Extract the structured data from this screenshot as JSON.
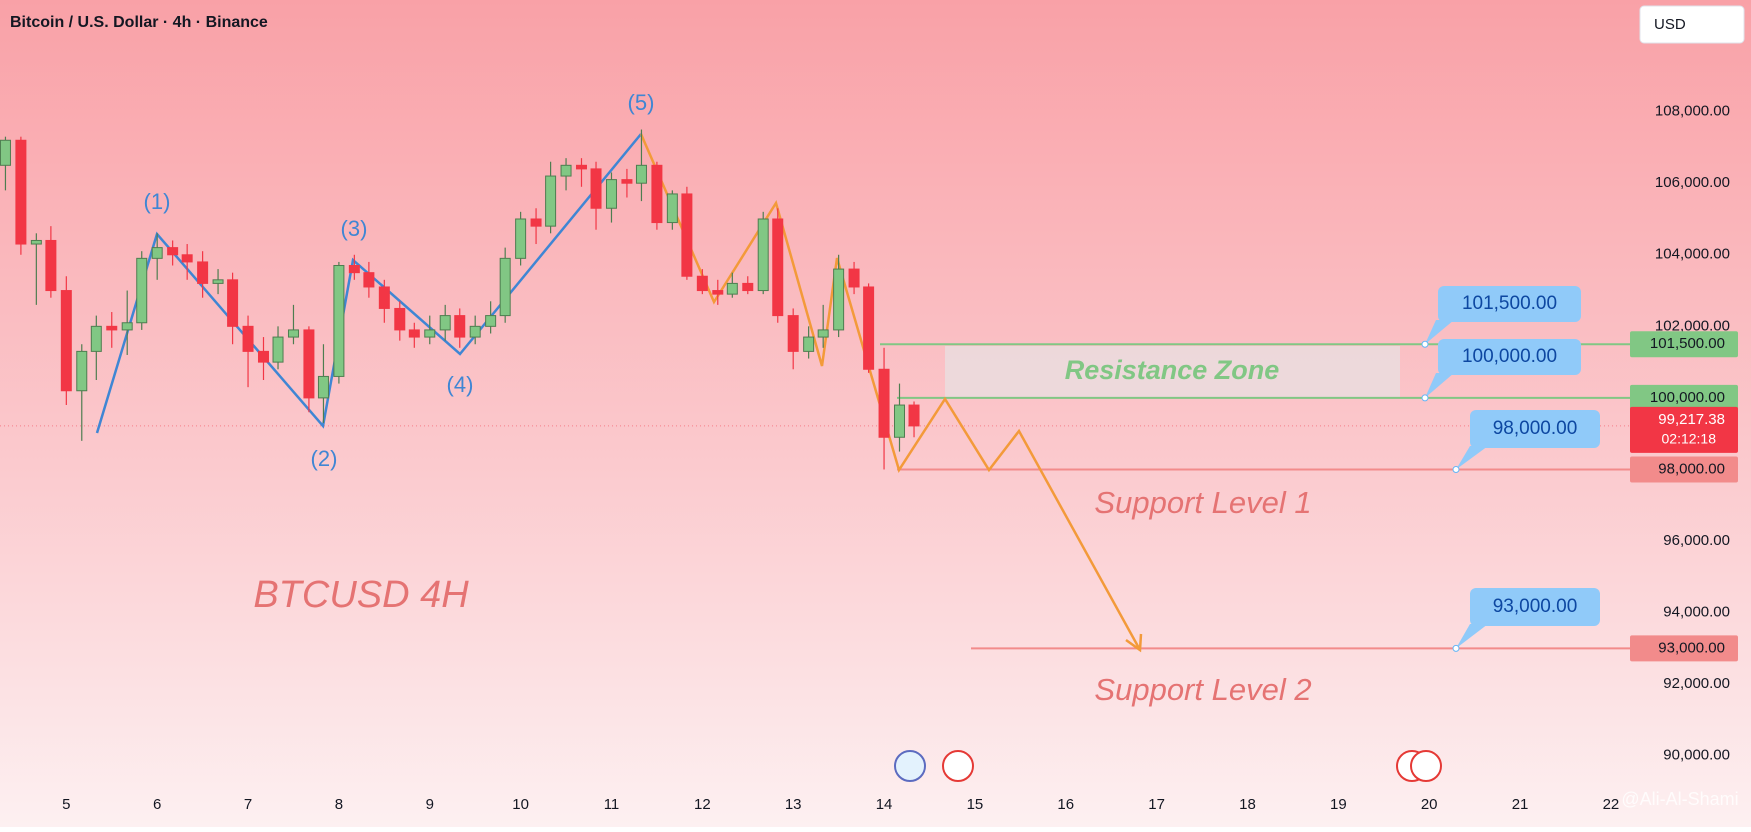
{
  "header": {
    "title": "Bitcoin / U.S. Dollar · 4h · Binance",
    "currency": "USD"
  },
  "chart_data": {
    "type": "candlestick",
    "x": [
      4.33,
      4.5,
      4.67,
      4.83,
      5,
      5.17,
      5.33,
      5.5,
      5.67,
      5.83,
      6,
      6.17,
      6.33,
      6.5,
      6.67,
      6.83,
      7,
      7.17,
      7.33,
      7.5,
      7.67,
      7.83,
      8,
      8.17,
      8.33,
      8.5,
      8.67,
      8.83,
      9,
      9.17,
      9.33,
      9.5,
      9.67,
      9.83,
      10,
      10.17,
      10.33,
      10.5,
      10.67,
      10.83,
      11,
      11.17,
      11.33,
      11.5,
      11.67,
      11.83,
      12,
      12.17,
      12.33,
      12.5,
      12.67,
      12.83,
      13,
      13.17,
      13.33,
      13.5,
      13.67,
      13.83,
      14,
      14.17,
      14.33
    ],
    "open": [
      106500,
      107200,
      104300,
      104400,
      103000,
      100200,
      101300,
      102000,
      101900,
      102100,
      103900,
      104200,
      104000,
      103800,
      103200,
      103300,
      102000,
      101300,
      101000,
      101700,
      101900,
      100000,
      100600,
      103700,
      103500,
      103100,
      102500,
      101900,
      101700,
      101900,
      102300,
      101700,
      102000,
      102300,
      103900,
      105000,
      104800,
      106200,
      106500,
      106400,
      105300,
      106100,
      106000,
      106500,
      104900,
      105700,
      103400,
      103000,
      102900,
      103200,
      103000,
      105000,
      102300,
      101300,
      101700,
      101900,
      103600,
      103100,
      100800,
      98900,
      99800
    ],
    "high": [
      107300,
      107300,
      104600,
      104800,
      103400,
      101500,
      102300,
      102400,
      103000,
      104100,
      104600,
      104400,
      104300,
      104100,
      103600,
      103500,
      102300,
      101700,
      102000,
      102600,
      102000,
      101500,
      103800,
      104000,
      103800,
      103300,
      102700,
      102100,
      102300,
      102600,
      102500,
      102300,
      102700,
      104200,
      105200,
      105300,
      106600,
      106700,
      106700,
      106600,
      106300,
      106400,
      107500,
      106600,
      105800,
      105900,
      103600,
      103300,
      103500,
      103400,
      105200,
      105300,
      102500,
      102000,
      102600,
      104000,
      103800,
      103200,
      101400,
      100400,
      99900
    ],
    "low": [
      105800,
      104000,
      102600,
      102800,
      99800,
      98800,
      100500,
      101400,
      101200,
      101900,
      103300,
      103700,
      103300,
      102800,
      102900,
      101500,
      100300,
      100500,
      100800,
      101500,
      99600,
      99300,
      100400,
      103300,
      102800,
      102100,
      101600,
      101400,
      101500,
      101600,
      101400,
      101500,
      101800,
      102100,
      103700,
      104300,
      104600,
      105800,
      105900,
      104700,
      104900,
      105600,
      105500,
      104700,
      104700,
      103300,
      102900,
      102600,
      102800,
      102900,
      102900,
      102100,
      100800,
      101100,
      101400,
      101700,
      102900,
      100700,
      98000,
      98500,
      98900
    ],
    "close": [
      107200,
      104300,
      104400,
      103000,
      100200,
      101300,
      102000,
      101900,
      102100,
      103900,
      104200,
      104000,
      103800,
      103200,
      103300,
      102000,
      101300,
      101000,
      101700,
      101900,
      100000,
      100600,
      103700,
      103500,
      103100,
      102500,
      101900,
      101700,
      101900,
      102300,
      101700,
      102000,
      102300,
      103900,
      105000,
      104800,
      106200,
      106500,
      106400,
      105300,
      106100,
      106000,
      106500,
      104900,
      105700,
      103400,
      103000,
      102900,
      103200,
      103000,
      105000,
      102300,
      101300,
      101700,
      101900,
      103600,
      103100,
      100800,
      98900,
      99800,
      99217.38
    ],
    "up_color": "#81c784",
    "down_color": "#f23645",
    "xlim": [
      4.27,
      22.21
    ],
    "xticks": [
      5,
      6,
      7,
      8,
      9,
      10,
      11,
      12,
      13,
      14,
      15,
      16,
      17,
      18,
      19,
      20,
      21,
      22
    ],
    "ylim": [
      89126,
      111120
    ],
    "yticks": [
      {
        "value": 90000,
        "label": "90,000.00"
      },
      {
        "value": 92000,
        "label": "92,000.00"
      },
      {
        "value": 94000,
        "label": "94,000.00"
      },
      {
        "value": 96000,
        "label": "96,000.00"
      },
      {
        "value": 98000,
        "label": "98,000.00"
      },
      {
        "value": 100000,
        "label": "100,000.00"
      },
      {
        "value": 102000,
        "label": "102,000.00"
      },
      {
        "value": 104000,
        "label": "104,000.00"
      },
      {
        "value": 106000,
        "label": "106,000.00"
      },
      {
        "value": 108000,
        "label": "108,000.00"
      }
    ],
    "levels": [
      {
        "value": 101500,
        "label": "101,500.00",
        "color": "#81c784"
      },
      {
        "value": 100000,
        "label": "100,000.00",
        "color": "#81c784"
      },
      {
        "value": 98000,
        "label": "98,000.00",
        "color": "#f28b8b"
      },
      {
        "value": 93000,
        "label": "93,000.00",
        "color": "#f28b8b"
      }
    ],
    "current_price": {
      "value": 99217.38,
      "label": "99,217.38",
      "countdown": "02:12:18",
      "color": "#f23645"
    },
    "annotations": {
      "symbol": "BTCUSD 4H",
      "resistance": "Resistance Zone",
      "support1": "Support Level 1",
      "support2": "Support Level 2",
      "waves": [
        "(1)",
        "(2)",
        "(3)",
        "(4)",
        "(5)"
      ],
      "watermark": "@Ali-Al-Shami"
    }
  }
}
